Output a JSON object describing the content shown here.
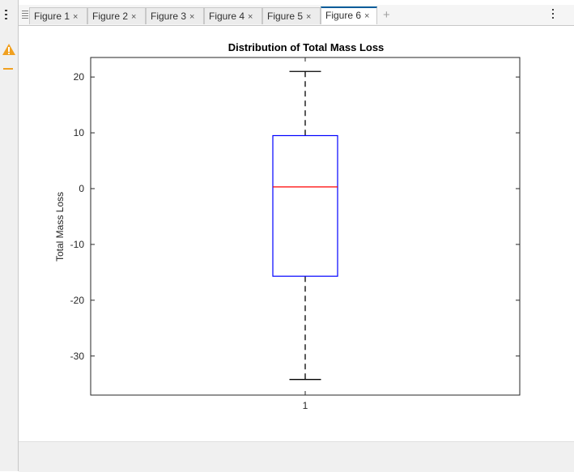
{
  "tabs": [
    {
      "label": "Figure 1",
      "close": "×"
    },
    {
      "label": "Figure 2",
      "close": "×"
    },
    {
      "label": "Figure 3",
      "close": "×"
    },
    {
      "label": "Figure 4",
      "close": "×"
    },
    {
      "label": "Figure 5",
      "close": "×"
    },
    {
      "label": "Figure 6",
      "close": "×",
      "active": true
    }
  ],
  "add_tab_label": "+",
  "icons": {
    "left_menu": "vertical-menu-icon",
    "warning": "warning-icon",
    "tab_list": "tab-list-icon",
    "more": "more-options-icon"
  },
  "colors": {
    "box": "#0000ff",
    "median": "#ff0000",
    "whisker": "#000000",
    "active_tab_accent": "#005c99",
    "warning": "#f0a020"
  },
  "chart_data": {
    "type": "box",
    "title": "Distribution of Total Mass Loss",
    "xlabel": "",
    "ylabel": "Total Mass Loss",
    "categories": [
      "1"
    ],
    "ylim": [
      -37,
      23.5
    ],
    "yticks": [
      20,
      10,
      0,
      -10,
      -20,
      -30
    ],
    "ytick_labels": [
      "20",
      "10",
      "0",
      "-10",
      "-20",
      "-30"
    ],
    "boxes": [
      {
        "category": "1",
        "whisker_high": 21,
        "q3": 9.5,
        "median": 0.3,
        "q1": -15.7,
        "whisker_low": -34.2
      }
    ],
    "grid": false
  }
}
